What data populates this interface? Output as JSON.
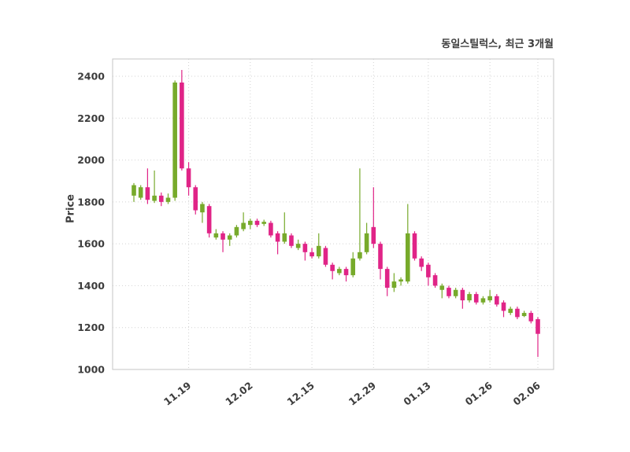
{
  "chart_data": {
    "type": "candlestick",
    "title": "동일스틸럭스, 최근 3개월",
    "xlabel": "",
    "ylabel": "Price",
    "ylim": [
      1000,
      2483
    ],
    "yticks": [
      1000,
      1200,
      1400,
      1600,
      1800,
      2000,
      2200,
      2400
    ],
    "xticks": [
      {
        "label": "11.19",
        "index": 8
      },
      {
        "label": "12.02",
        "index": 17
      },
      {
        "label": "12.15",
        "index": 26
      },
      {
        "label": "12.29",
        "index": 35
      },
      {
        "label": "01.13",
        "index": 43
      },
      {
        "label": "01.26",
        "index": 52
      },
      {
        "label": "02.06",
        "index": 59
      }
    ],
    "grid": true,
    "legend": false,
    "colors": {
      "up": "#77aa2b",
      "down": "#e02487",
      "grid": "#d2d2d2",
      "border": "#c4c4c4",
      "text": "#3d3d3d",
      "background": "#ffffff"
    },
    "ohlc_fields": [
      "open",
      "high",
      "low",
      "close"
    ],
    "ohlc": [
      [
        1830,
        1890,
        1800,
        1880
      ],
      [
        1820,
        1880,
        1810,
        1870
      ],
      [
        1870,
        1960,
        1790,
        1810
      ],
      [
        1805,
        1950,
        1795,
        1830
      ],
      [
        1830,
        1845,
        1780,
        1800
      ],
      [
        1800,
        1840,
        1790,
        1820
      ],
      [
        1820,
        2380,
        1805,
        2370
      ],
      [
        2370,
        2430,
        1950,
        1960
      ],
      [
        1960,
        1990,
        1830,
        1870
      ],
      [
        1870,
        1880,
        1740,
        1760
      ],
      [
        1750,
        1800,
        1700,
        1790
      ],
      [
        1780,
        1790,
        1630,
        1650
      ],
      [
        1630,
        1670,
        1620,
        1650
      ],
      [
        1650,
        1660,
        1560,
        1620
      ],
      [
        1620,
        1650,
        1590,
        1640
      ],
      [
        1640,
        1690,
        1630,
        1680
      ],
      [
        1670,
        1750,
        1660,
        1700
      ],
      [
        1690,
        1720,
        1670,
        1710
      ],
      [
        1710,
        1720,
        1680,
        1690
      ],
      [
        1695,
        1715,
        1685,
        1705
      ],
      [
        1700,
        1710,
        1630,
        1640
      ],
      [
        1650,
        1660,
        1550,
        1610
      ],
      [
        1610,
        1750,
        1600,
        1650
      ],
      [
        1640,
        1650,
        1580,
        1590
      ],
      [
        1580,
        1620,
        1570,
        1600
      ],
      [
        1600,
        1610,
        1520,
        1560
      ],
      [
        1560,
        1580,
        1530,
        1540
      ],
      [
        1540,
        1650,
        1530,
        1590
      ],
      [
        1580,
        1590,
        1490,
        1500
      ],
      [
        1500,
        1510,
        1430,
        1470
      ],
      [
        1460,
        1490,
        1450,
        1480
      ],
      [
        1480,
        1490,
        1420,
        1450
      ],
      [
        1450,
        1560,
        1440,
        1530
      ],
      [
        1530,
        1960,
        1520,
        1560
      ],
      [
        1560,
        1700,
        1550,
        1650
      ],
      [
        1680,
        1870,
        1580,
        1600
      ],
      [
        1600,
        1610,
        1430,
        1480
      ],
      [
        1480,
        1490,
        1350,
        1390
      ],
      [
        1390,
        1460,
        1370,
        1420
      ],
      [
        1420,
        1440,
        1400,
        1430
      ],
      [
        1420,
        1790,
        1410,
        1650
      ],
      [
        1650,
        1660,
        1520,
        1530
      ],
      [
        1530,
        1540,
        1470,
        1490
      ],
      [
        1500,
        1510,
        1400,
        1440
      ],
      [
        1450,
        1460,
        1390,
        1400
      ],
      [
        1380,
        1410,
        1340,
        1400
      ],
      [
        1390,
        1400,
        1340,
        1350
      ],
      [
        1350,
        1390,
        1340,
        1380
      ],
      [
        1380,
        1390,
        1290,
        1330
      ],
      [
        1330,
        1370,
        1320,
        1360
      ],
      [
        1360,
        1370,
        1310,
        1320
      ],
      [
        1320,
        1350,
        1310,
        1340
      ],
      [
        1330,
        1380,
        1320,
        1350
      ],
      [
        1350,
        1360,
        1300,
        1310
      ],
      [
        1320,
        1330,
        1250,
        1280
      ],
      [
        1270,
        1300,
        1260,
        1290
      ],
      [
        1290,
        1300,
        1240,
        1250
      ],
      [
        1255,
        1280,
        1250,
        1270
      ],
      [
        1270,
        1280,
        1220,
        1230
      ],
      [
        1240,
        1250,
        1060,
        1170
      ]
    ]
  }
}
